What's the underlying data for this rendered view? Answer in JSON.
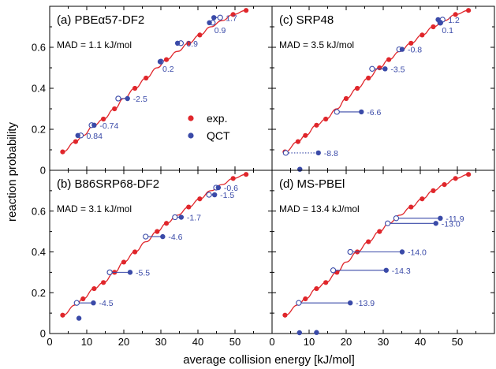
{
  "figure": {
    "xlabel": "average collision energy [kJ/mol]",
    "ylabel": "reaction probability",
    "legend": {
      "exp_label": "exp.",
      "qct_label": "QCT",
      "placement": "panel-a-right"
    }
  },
  "colors": {
    "exp": "#e0262b",
    "qct": "#3a4aa8",
    "connector": "#3a4aa8"
  },
  "chart_data": [
    {
      "type": "scatter",
      "panel": "a",
      "title": "(a) PBEα57-DF2",
      "mad": "MAD = 1.1 kJ/mol",
      "xlim": [
        0,
        60
      ],
      "ylim": [
        0,
        0.8
      ],
      "xticks": [
        0,
        10,
        20,
        30,
        40,
        50
      ],
      "yticks": [
        0,
        0.2,
        0.4,
        0.6
      ],
      "exp_curve": {
        "x": [
          3.5,
          7,
          9,
          12,
          14.5,
          17.5,
          20,
          23,
          26,
          29,
          31.5,
          34.5,
          37.5,
          40.5,
          43.5,
          46.5,
          49.5,
          53
        ],
        "y": [
          0.09,
          0.14,
          0.17,
          0.22,
          0.25,
          0.3,
          0.35,
          0.4,
          0.45,
          0.5,
          0.54,
          0.58,
          0.62,
          0.66,
          0.7,
          0.73,
          0.76,
          0.78
        ]
      },
      "exp_points": {
        "x": [
          3.5,
          7,
          12,
          14.5,
          17.5,
          23,
          26,
          31.5,
          37.5,
          40.5,
          49.5,
          53
        ],
        "y": [
          0.09,
          0.14,
          0.22,
          0.25,
          0.3,
          0.4,
          0.45,
          0.54,
          0.62,
          0.66,
          0.76,
          0.78
        ]
      },
      "shifts": [
        {
          "exp_x": 8.4,
          "exp_y": 0.17,
          "qct_x": 7.6,
          "label": "0.84",
          "label_pos": "right"
        },
        {
          "exp_x": 11.3,
          "exp_y": 0.22,
          "qct_x": 12.0,
          "label": "-0.74",
          "label_pos": "right"
        },
        {
          "exp_x": 18.5,
          "exp_y": 0.35,
          "qct_x": 21.0,
          "label": "-2.5",
          "label_pos": "right"
        },
        {
          "exp_x": 30.0,
          "exp_y": 0.53,
          "qct_x": 29.8,
          "label": "0.2",
          "label_pos": "below"
        },
        {
          "exp_x": 35.4,
          "exp_y": 0.62,
          "qct_x": 34.5,
          "label": "0.9",
          "label_pos": "right"
        },
        {
          "exp_x": 44.0,
          "exp_y": 0.72,
          "qct_x": 43.1,
          "label": "0.9",
          "label_pos": "below"
        },
        {
          "exp_x": 46.0,
          "exp_y": 0.745,
          "qct_x": 44.3,
          "label": "1.7",
          "label_pos": "right"
        }
      ],
      "unmatched_qct": []
    },
    {
      "type": "scatter",
      "panel": "c",
      "title": "(c) SRP48",
      "mad": "MAD = 3.5 kJ/mol",
      "xlim": [
        0,
        60
      ],
      "ylim": [
        0,
        0.8
      ],
      "xticks": [
        0,
        10,
        20,
        30,
        40,
        50
      ],
      "yticks": [
        0,
        0.2,
        0.4,
        0.6
      ],
      "exp_curve": {
        "x": [
          3.5,
          7,
          9,
          12,
          14.5,
          17.5,
          20,
          23,
          26,
          29,
          31.5,
          34.5,
          37.5,
          40.5,
          43.5,
          46.5,
          49.5,
          53
        ],
        "y": [
          0.09,
          0.14,
          0.17,
          0.22,
          0.25,
          0.3,
          0.35,
          0.4,
          0.45,
          0.5,
          0.54,
          0.58,
          0.62,
          0.66,
          0.7,
          0.73,
          0.76,
          0.78
        ]
      },
      "exp_points": {
        "x": [
          3.5,
          7,
          9,
          12,
          14.5,
          20,
          23,
          26,
          29,
          31.5,
          37.5,
          40.5,
          43.5,
          49.5,
          53
        ],
        "y": [
          0.09,
          0.14,
          0.17,
          0.22,
          0.25,
          0.35,
          0.4,
          0.45,
          0.5,
          0.54,
          0.62,
          0.66,
          0.7,
          0.76,
          0.78
        ]
      },
      "shifts": [
        {
          "exp_x": 3.7,
          "exp_y": 0.085,
          "qct_x": 12.5,
          "label": "-8.8",
          "label_pos": "right",
          "dotted": true
        },
        {
          "exp_x": 17.5,
          "exp_y": 0.285,
          "qct_x": 24.1,
          "label": "-6.6",
          "label_pos": "right"
        },
        {
          "exp_x": 27.0,
          "exp_y": 0.495,
          "qct_x": 30.5,
          "label": "-3.5",
          "label_pos": "right"
        },
        {
          "exp_x": 34.3,
          "exp_y": 0.59,
          "qct_x": 35.1,
          "label": "-0.8",
          "label_pos": "right"
        },
        {
          "exp_x": 46.0,
          "exp_y": 0.735,
          "qct_x": 44.8,
          "label": "1.2",
          "label_pos": "right"
        },
        {
          "exp_x": 45.4,
          "exp_y": 0.72,
          "qct_x": 45.3,
          "label": "0.1",
          "label_pos": "below"
        }
      ],
      "unmatched_qct": [
        {
          "x": 7.5,
          "y": 0.005
        }
      ]
    },
    {
      "type": "scatter",
      "panel": "b",
      "title": "(b) B86SRP68-DF2",
      "mad": "MAD = 3.1 kJ/mol",
      "xlim": [
        0,
        60
      ],
      "ylim": [
        0,
        0.8
      ],
      "xticks": [
        0,
        10,
        20,
        30,
        40,
        50
      ],
      "yticks": [
        0,
        0.2,
        0.4,
        0.6
      ],
      "exp_curve": {
        "x": [
          3.5,
          7,
          9,
          12,
          14.5,
          17.5,
          20,
          23,
          26,
          29,
          31.5,
          34.5,
          37.5,
          40.5,
          43.5,
          46.5,
          49.5,
          53
        ],
        "y": [
          0.09,
          0.14,
          0.17,
          0.22,
          0.25,
          0.3,
          0.35,
          0.4,
          0.45,
          0.5,
          0.54,
          0.58,
          0.62,
          0.66,
          0.7,
          0.73,
          0.76,
          0.78
        ]
      },
      "exp_points": {
        "x": [
          3.5,
          9,
          12,
          14.5,
          17.5,
          20,
          23,
          29,
          31.5,
          37.5,
          40.5,
          49.5,
          53
        ],
        "y": [
          0.09,
          0.17,
          0.22,
          0.25,
          0.3,
          0.35,
          0.4,
          0.5,
          0.54,
          0.62,
          0.66,
          0.76,
          0.78
        ]
      },
      "shifts": [
        {
          "exp_x": 7.3,
          "exp_y": 0.15,
          "qct_x": 11.8,
          "label": "-4.5",
          "label_pos": "right"
        },
        {
          "exp_x": 16.2,
          "exp_y": 0.3,
          "qct_x": 21.7,
          "label": "-5.5",
          "label_pos": "right"
        },
        {
          "exp_x": 25.9,
          "exp_y": 0.475,
          "qct_x": 30.5,
          "label": "-4.6",
          "label_pos": "right"
        },
        {
          "exp_x": 33.8,
          "exp_y": 0.57,
          "qct_x": 35.5,
          "label": "-1.7",
          "label_pos": "right"
        },
        {
          "exp_x": 43.0,
          "exp_y": 0.68,
          "qct_x": 44.5,
          "label": "-1.5",
          "label_pos": "right"
        },
        {
          "exp_x": 44.9,
          "exp_y": 0.715,
          "qct_x": 45.5,
          "label": "-0.6",
          "label_pos": "right"
        }
      ],
      "unmatched_qct": [
        {
          "x": 7.9,
          "y": 0.075
        }
      ]
    },
    {
      "type": "scatter",
      "panel": "d",
      "title": "(d) MS-PBEl",
      "mad": "MAD = 13.4 kJ/mol",
      "xlim": [
        0,
        60
      ],
      "ylim": [
        0,
        0.8
      ],
      "xticks": [
        0,
        10,
        20,
        30,
        40,
        50
      ],
      "yticks": [
        0,
        0.2,
        0.4,
        0.6
      ],
      "exp_curve": {
        "x": [
          3.5,
          7,
          9,
          12,
          14.5,
          17.5,
          20,
          23,
          26,
          29,
          31.5,
          34.5,
          37.5,
          40.5,
          43.5,
          46.5,
          49.5,
          53
        ],
        "y": [
          0.09,
          0.14,
          0.17,
          0.22,
          0.25,
          0.3,
          0.35,
          0.4,
          0.45,
          0.5,
          0.54,
          0.58,
          0.62,
          0.66,
          0.7,
          0.73,
          0.76,
          0.78
        ]
      },
      "exp_points": {
        "x": [
          3.5,
          9,
          12,
          14.5,
          17.5,
          23,
          26,
          29,
          37.5,
          40.5,
          43.5,
          46.5,
          49.5,
          53
        ],
        "y": [
          0.09,
          0.17,
          0.22,
          0.25,
          0.3,
          0.4,
          0.45,
          0.5,
          0.62,
          0.66,
          0.7,
          0.73,
          0.76,
          0.78
        ]
      },
      "shifts": [
        {
          "exp_x": 7.2,
          "exp_y": 0.15,
          "qct_x": 21.1,
          "label": "-13.9",
          "label_pos": "right"
        },
        {
          "exp_x": 16.5,
          "exp_y": 0.31,
          "qct_x": 30.8,
          "label": "-14.3",
          "label_pos": "right"
        },
        {
          "exp_x": 21.1,
          "exp_y": 0.4,
          "qct_x": 35.1,
          "label": "-14.0",
          "label_pos": "right"
        },
        {
          "exp_x": 31.2,
          "exp_y": 0.54,
          "qct_x": 44.2,
          "label": "-13.0",
          "label_pos": "right"
        },
        {
          "exp_x": 33.5,
          "exp_y": 0.565,
          "qct_x": 45.4,
          "label": "-11.9",
          "label_pos": "right"
        }
      ],
      "unmatched_qct": [
        {
          "x": 7.4,
          "y": 0.0
        },
        {
          "x": 12.0,
          "y": 0.005
        }
      ]
    }
  ]
}
